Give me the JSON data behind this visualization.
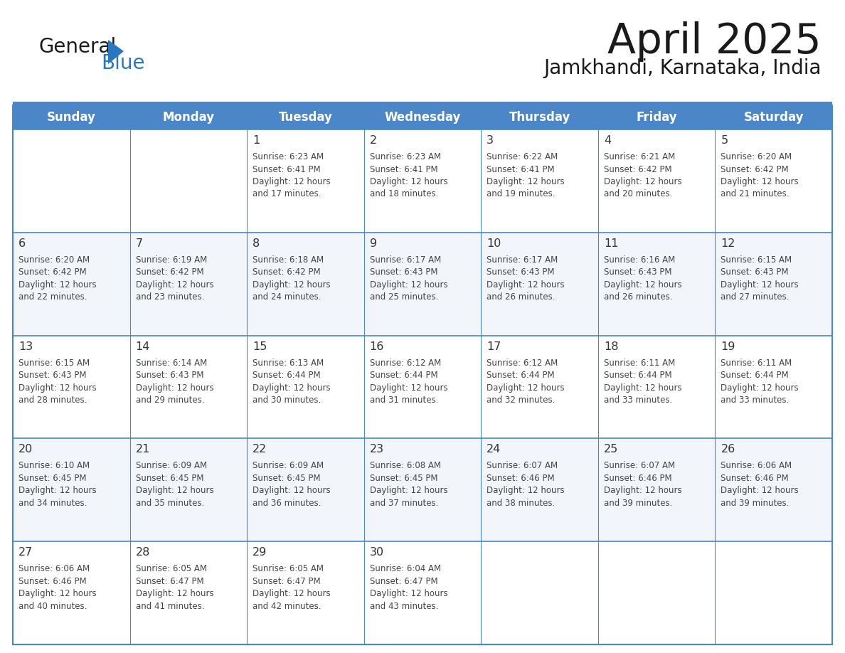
{
  "title": "April 2025",
  "subtitle": "Jamkhandi, Karnataka, India",
  "header_bg": "#4a86c8",
  "header_text_color": "#ffffff",
  "cell_bg_odd": "#f2f6fa",
  "cell_bg_even": "#ffffff",
  "border_color": "#4a86c8",
  "text_color": "#333333",
  "logo_text_color": "#1a1a1a",
  "logo_blue_color": "#2878c0",
  "day_headers": [
    "Sunday",
    "Monday",
    "Tuesday",
    "Wednesday",
    "Thursday",
    "Friday",
    "Saturday"
  ],
  "calendar_data": [
    [
      {
        "day": "",
        "sunrise": "",
        "sunset": "",
        "daylight_min": ""
      },
      {
        "day": "",
        "sunrise": "",
        "sunset": "",
        "daylight_min": ""
      },
      {
        "day": "1",
        "sunrise": "6:23 AM",
        "sunset": "6:41 PM",
        "daylight_min": "17 minutes."
      },
      {
        "day": "2",
        "sunrise": "6:23 AM",
        "sunset": "6:41 PM",
        "daylight_min": "18 minutes."
      },
      {
        "day": "3",
        "sunrise": "6:22 AM",
        "sunset": "6:41 PM",
        "daylight_min": "19 minutes."
      },
      {
        "day": "4",
        "sunrise": "6:21 AM",
        "sunset": "6:42 PM",
        "daylight_min": "20 minutes."
      },
      {
        "day": "5",
        "sunrise": "6:20 AM",
        "sunset": "6:42 PM",
        "daylight_min": "21 minutes."
      }
    ],
    [
      {
        "day": "6",
        "sunrise": "6:20 AM",
        "sunset": "6:42 PM",
        "daylight_min": "22 minutes."
      },
      {
        "day": "7",
        "sunrise": "6:19 AM",
        "sunset": "6:42 PM",
        "daylight_min": "23 minutes."
      },
      {
        "day": "8",
        "sunrise": "6:18 AM",
        "sunset": "6:42 PM",
        "daylight_min": "24 minutes."
      },
      {
        "day": "9",
        "sunrise": "6:17 AM",
        "sunset": "6:43 PM",
        "daylight_min": "25 minutes."
      },
      {
        "day": "10",
        "sunrise": "6:17 AM",
        "sunset": "6:43 PM",
        "daylight_min": "26 minutes."
      },
      {
        "day": "11",
        "sunrise": "6:16 AM",
        "sunset": "6:43 PM",
        "daylight_min": "26 minutes."
      },
      {
        "day": "12",
        "sunrise": "6:15 AM",
        "sunset": "6:43 PM",
        "daylight_min": "27 minutes."
      }
    ],
    [
      {
        "day": "13",
        "sunrise": "6:15 AM",
        "sunset": "6:43 PM",
        "daylight_min": "28 minutes."
      },
      {
        "day": "14",
        "sunrise": "6:14 AM",
        "sunset": "6:43 PM",
        "daylight_min": "29 minutes."
      },
      {
        "day": "15",
        "sunrise": "6:13 AM",
        "sunset": "6:44 PM",
        "daylight_min": "30 minutes."
      },
      {
        "day": "16",
        "sunrise": "6:12 AM",
        "sunset": "6:44 PM",
        "daylight_min": "31 minutes."
      },
      {
        "day": "17",
        "sunrise": "6:12 AM",
        "sunset": "6:44 PM",
        "daylight_min": "32 minutes."
      },
      {
        "day": "18",
        "sunrise": "6:11 AM",
        "sunset": "6:44 PM",
        "daylight_min": "33 minutes."
      },
      {
        "day": "19",
        "sunrise": "6:11 AM",
        "sunset": "6:44 PM",
        "daylight_min": "33 minutes."
      }
    ],
    [
      {
        "day": "20",
        "sunrise": "6:10 AM",
        "sunset": "6:45 PM",
        "daylight_min": "34 minutes."
      },
      {
        "day": "21",
        "sunrise": "6:09 AM",
        "sunset": "6:45 PM",
        "daylight_min": "35 minutes."
      },
      {
        "day": "22",
        "sunrise": "6:09 AM",
        "sunset": "6:45 PM",
        "daylight_min": "36 minutes."
      },
      {
        "day": "23",
        "sunrise": "6:08 AM",
        "sunset": "6:45 PM",
        "daylight_min": "37 minutes."
      },
      {
        "day": "24",
        "sunrise": "6:07 AM",
        "sunset": "6:46 PM",
        "daylight_min": "38 minutes."
      },
      {
        "day": "25",
        "sunrise": "6:07 AM",
        "sunset": "6:46 PM",
        "daylight_min": "39 minutes."
      },
      {
        "day": "26",
        "sunrise": "6:06 AM",
        "sunset": "6:46 PM",
        "daylight_min": "39 minutes."
      }
    ],
    [
      {
        "day": "27",
        "sunrise": "6:06 AM",
        "sunset": "6:46 PM",
        "daylight_min": "40 minutes."
      },
      {
        "day": "28",
        "sunrise": "6:05 AM",
        "sunset": "6:47 PM",
        "daylight_min": "41 minutes."
      },
      {
        "day": "29",
        "sunrise": "6:05 AM",
        "sunset": "6:47 PM",
        "daylight_min": "42 minutes."
      },
      {
        "day": "30",
        "sunrise": "6:04 AM",
        "sunset": "6:47 PM",
        "daylight_min": "43 minutes."
      },
      {
        "day": "",
        "sunrise": "",
        "sunset": "",
        "daylight_min": ""
      },
      {
        "day": "",
        "sunrise": "",
        "sunset": "",
        "daylight_min": ""
      },
      {
        "day": "",
        "sunrise": "",
        "sunset": "",
        "daylight_min": ""
      }
    ]
  ]
}
